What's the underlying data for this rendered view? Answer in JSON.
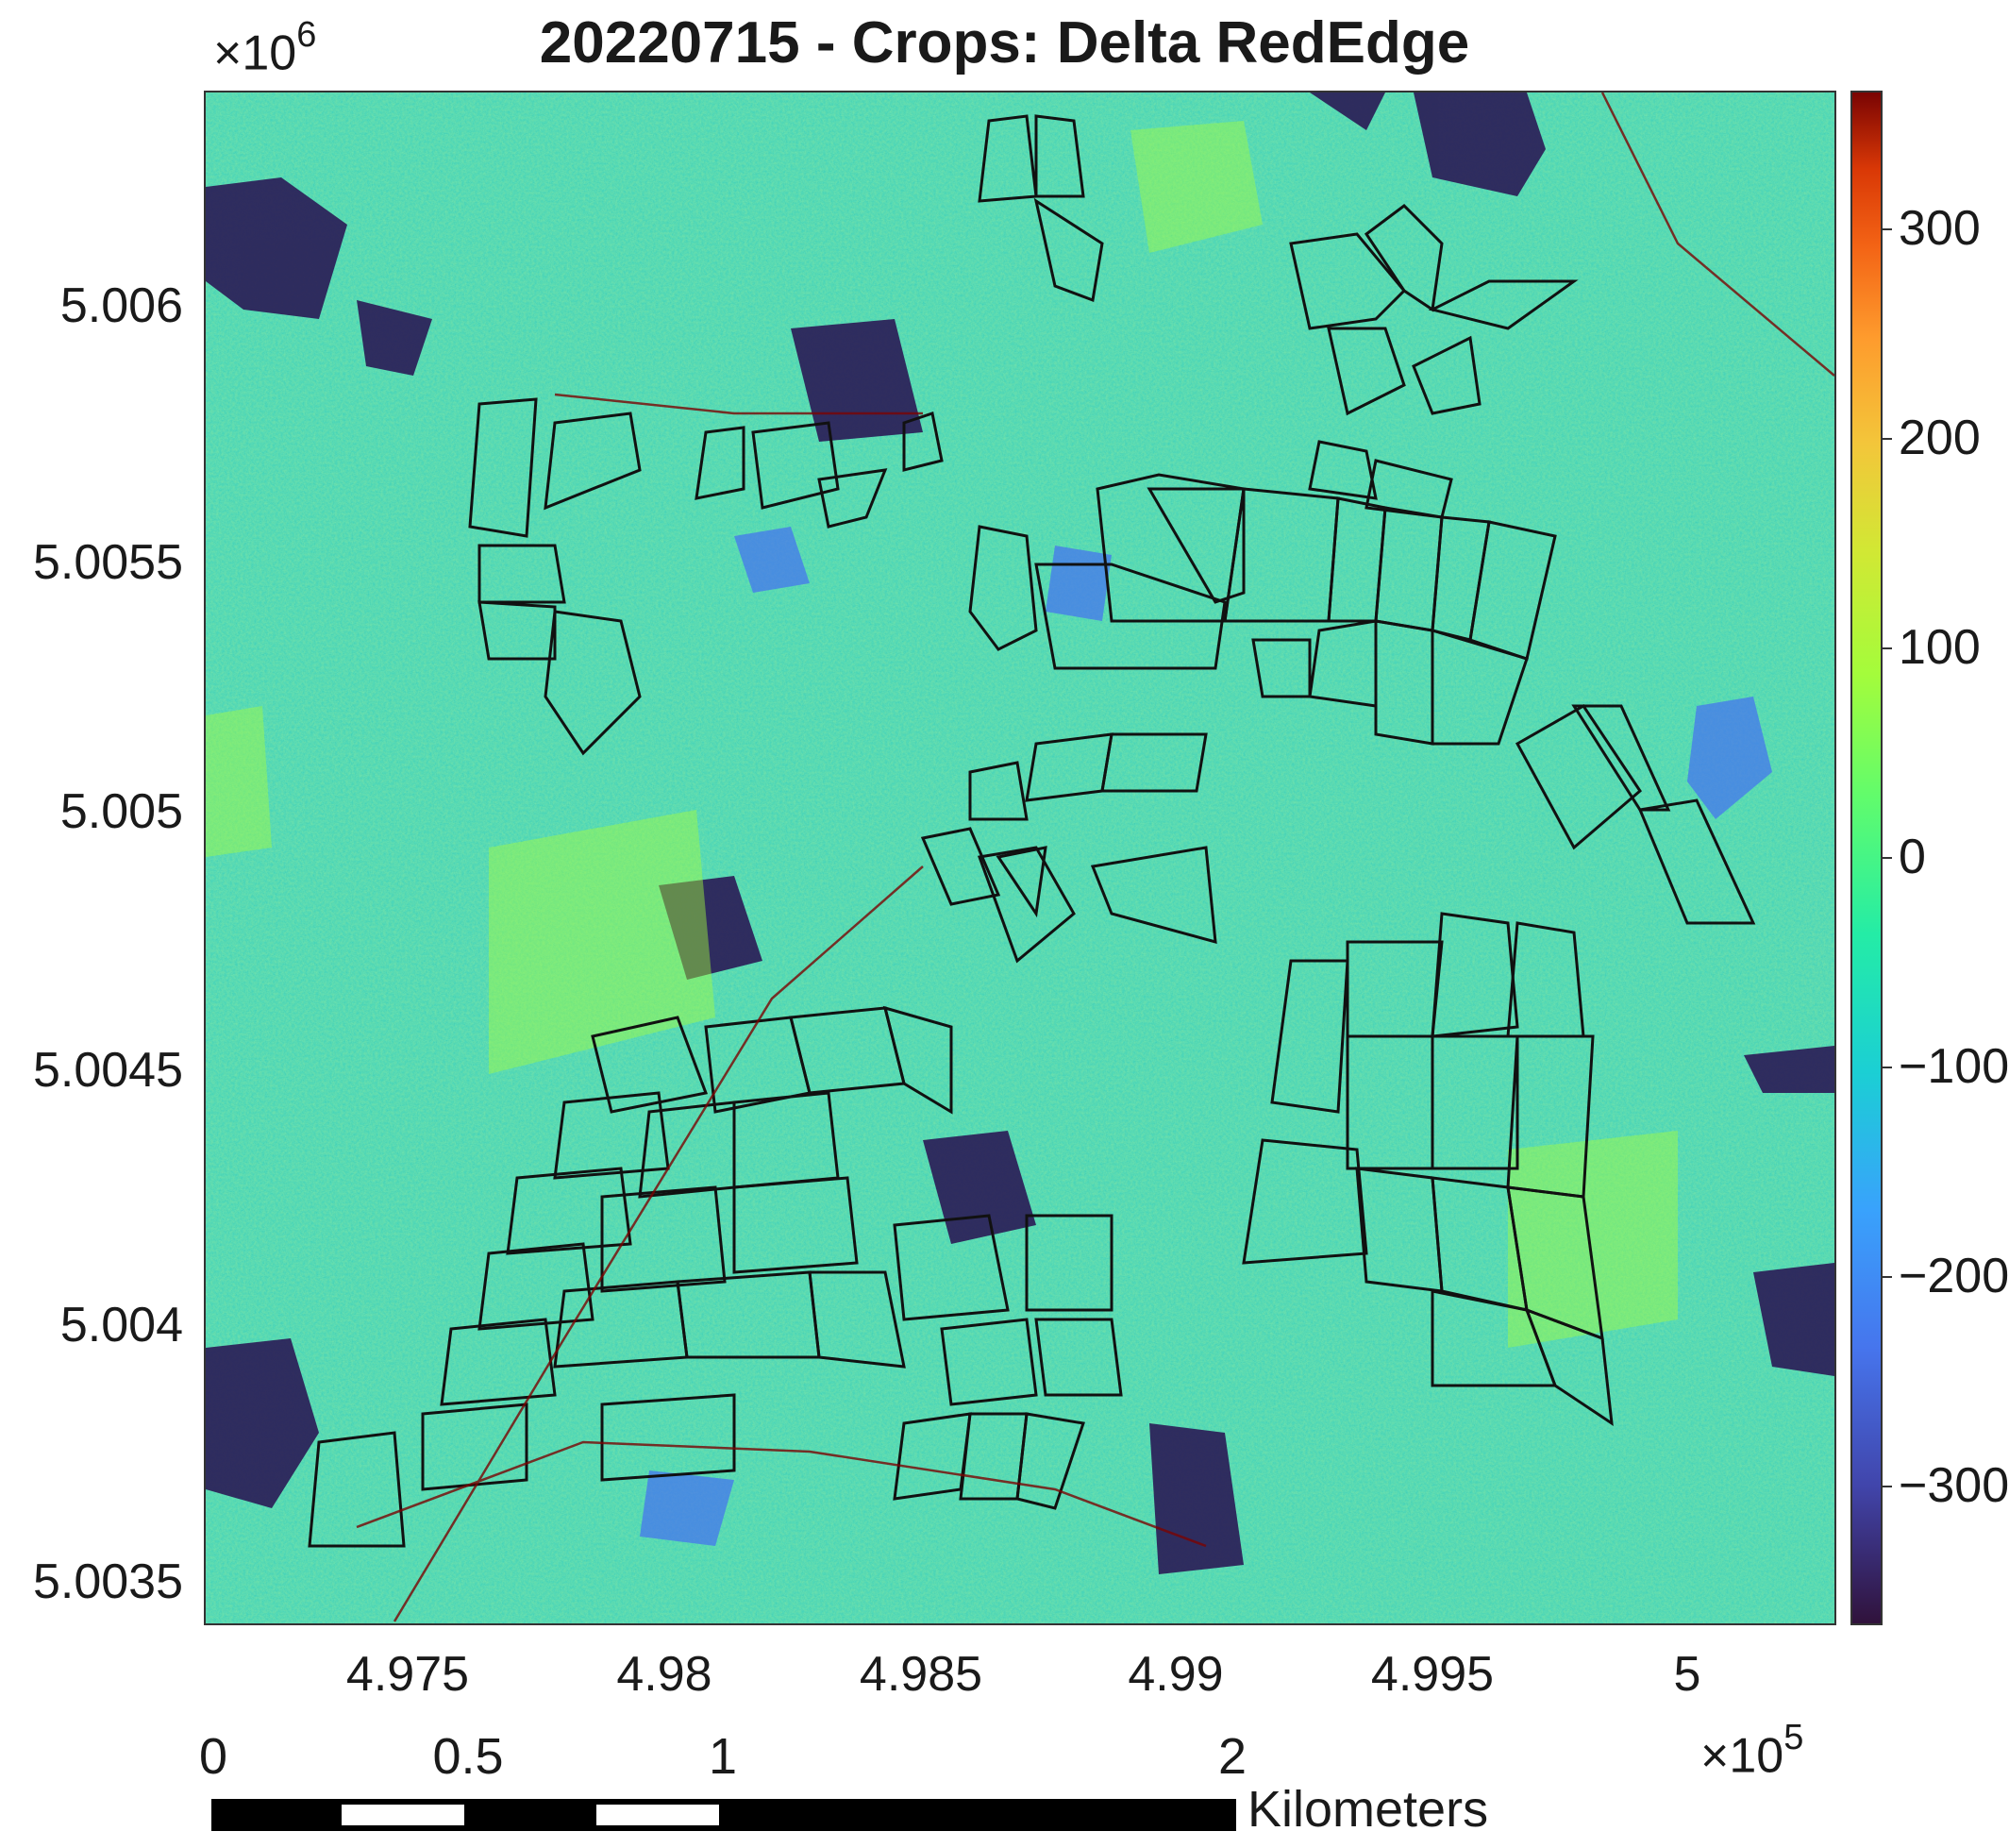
{
  "title": "20220715 - Crops: Delta RedEdge",
  "y_axis": {
    "exponent_base": "×10",
    "exponent_power": "6",
    "ticks": [
      "5.006",
      "5.0055",
      "5.005",
      "5.0045",
      "5.004",
      "5.0035"
    ]
  },
  "x_axis": {
    "exponent_base": "×10",
    "exponent_power": "5",
    "ticks": [
      "4.975",
      "4.98",
      "4.985",
      "4.99",
      "4.995",
      "5"
    ]
  },
  "colorbar": {
    "colormap": "turbo",
    "ticks": [
      "300",
      "200",
      "100",
      "0",
      "−100",
      "−200",
      "−300"
    ],
    "range": [
      -360,
      360
    ]
  },
  "scale_bar": {
    "labels": [
      "0",
      "0.5",
      "1",
      "2"
    ],
    "unit": "Kilometers"
  },
  "colors": {
    "background_field": "#2ad1b4",
    "field_outline": "#111111",
    "low_value": "#30123b",
    "high_value": "#7a0403"
  }
}
